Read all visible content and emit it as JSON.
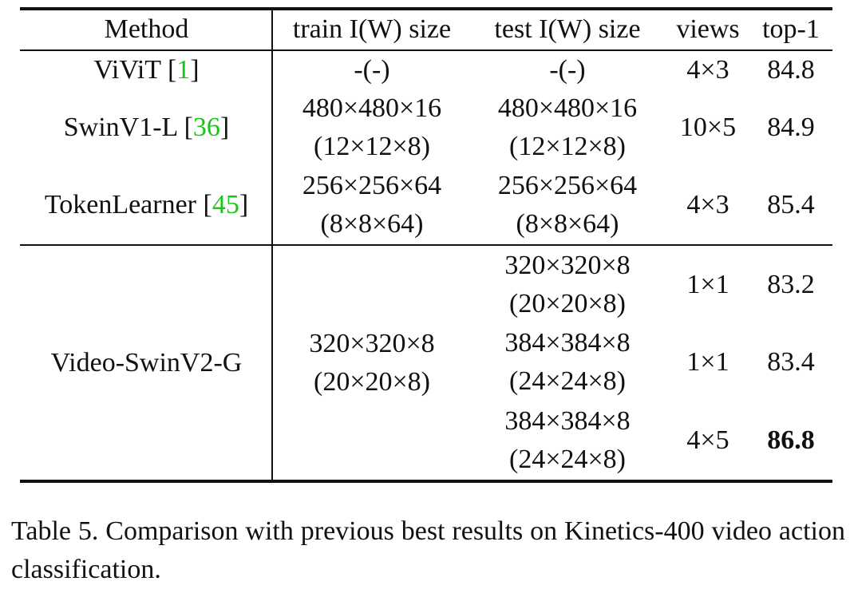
{
  "table": {
    "headers": [
      "Method",
      "train I(W) size",
      "test I(W) size",
      "views",
      "top-1"
    ],
    "rows": [
      {
        "method": "ViViT",
        "cite": "1",
        "train": [
          "-(-)"
        ],
        "test": [
          "-(-)"
        ],
        "views": "4×3",
        "top1": "84.8"
      },
      {
        "method": "SwinV1-L",
        "cite": "36",
        "train": [
          "480×480×16",
          "(12×12×8)"
        ],
        "test": [
          "480×480×16",
          "(12×12×8)"
        ],
        "views": "10×5",
        "top1": "84.9"
      },
      {
        "method": "TokenLearner",
        "cite": "45",
        "train": [
          "256×256×64",
          "(8×8×64)"
        ],
        "test": [
          "256×256×64",
          "(8×8×64)"
        ],
        "views": "4×3",
        "top1": "85.4"
      },
      {
        "method": "Video-SwinV2-G",
        "train": [
          "320×320×8",
          "(20×20×8)"
        ],
        "subrows": [
          {
            "test": [
              "320×320×8",
              "(20×20×8)"
            ],
            "views": "1×1",
            "top1": "83.2"
          },
          {
            "test": [
              "384×384×8",
              "(24×24×8)"
            ],
            "views": "1×1",
            "top1": "83.4"
          },
          {
            "test": [
              "384×384×8",
              "(24×24×8)"
            ],
            "views": "4×5",
            "top1": "86.8"
          }
        ]
      }
    ]
  },
  "caption": "Table 5. Comparison with previous best results on Kinetics-400 video action classification."
}
